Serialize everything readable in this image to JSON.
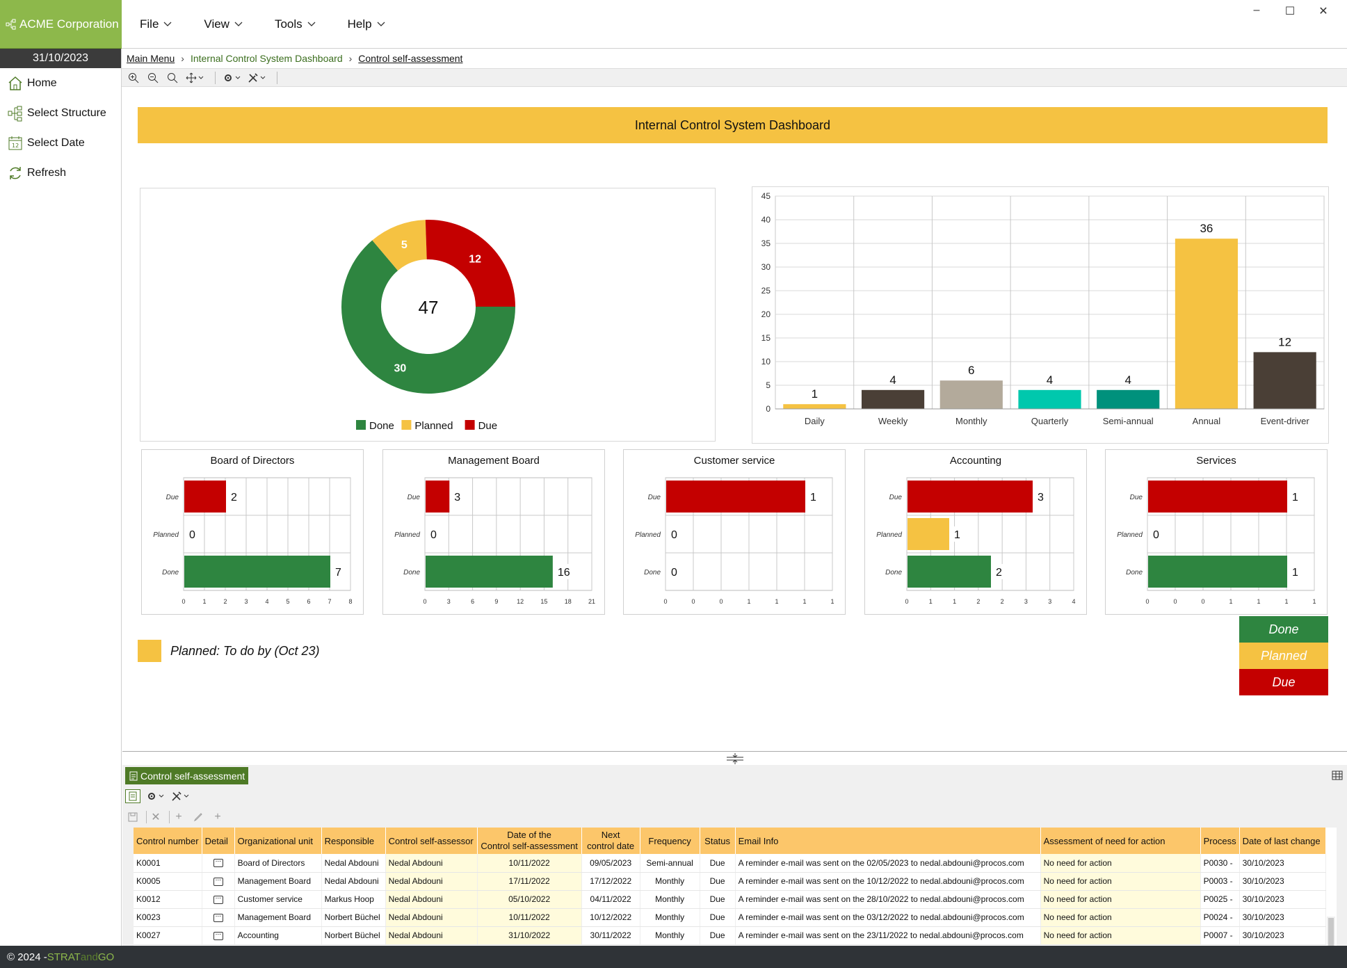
{
  "app": {
    "brand": "ACME Corporation",
    "date": "31/10/2023",
    "menu": [
      {
        "label": "File"
      },
      {
        "label": "View"
      },
      {
        "label": "Tools"
      },
      {
        "label": "Help"
      }
    ],
    "window_controls": [
      "–",
      "☐",
      "✕"
    ]
  },
  "sidebar": {
    "items": [
      {
        "label": "Home",
        "icon": "home-icon"
      },
      {
        "label": "Select Structure",
        "icon": "structure-icon"
      },
      {
        "label": "Select Date",
        "icon": "calendar-icon"
      },
      {
        "label": "Refresh",
        "icon": "refresh-icon"
      }
    ]
  },
  "breadcrumb": {
    "items": [
      "Main Menu",
      "Internal Control System Dashboard",
      "Control self-assessment"
    ]
  },
  "dashboard": {
    "title": "Internal Control System Dashboard",
    "planned_note": "Planned: To do by (Oct 23)",
    "legend_box": [
      "Done",
      "Planned",
      "Due"
    ]
  },
  "colors": {
    "done": "#2e8540",
    "planned": "#f5c242",
    "due": "#c40000",
    "brand_green": "#8db84b",
    "header_yellow": "#f5c242"
  },
  "chart_data": [
    {
      "type": "pie",
      "center_label": "47",
      "slices": [
        {
          "label": "Done",
          "value": 30,
          "color": "#2e8540"
        },
        {
          "label": "Planned",
          "value": 5,
          "color": "#f5c242"
        },
        {
          "label": "Due",
          "value": 12,
          "color": "#c40000"
        }
      ],
      "legend": [
        "Done",
        "Planned",
        "Due"
      ],
      "legend_placement": "bottom"
    },
    {
      "type": "bar",
      "categories": [
        "Daily",
        "Weekly",
        "Monthly",
        "Quarterly",
        "Semi-annual",
        "Annual",
        "Event-driver"
      ],
      "values": [
        1,
        4,
        6,
        4,
        4,
        36,
        12
      ],
      "colors": [
        "#f5c242",
        "#4a3f36",
        "#b3aa9b",
        "#00c8ad",
        "#00917c",
        "#f5c242",
        "#4a3f36"
      ],
      "ylim": [
        0,
        45
      ],
      "yticks": [
        "0",
        "5",
        "10",
        "15",
        "20",
        "25",
        "30",
        "35",
        "40",
        "45"
      ],
      "grid": true
    },
    {
      "type": "bar",
      "orientation": "horizontal",
      "title": "Board of Directors",
      "categories": [
        "Due",
        "Planned",
        "Done"
      ],
      "values": [
        2,
        0,
        7
      ],
      "xlim": [
        0,
        8
      ],
      "xticks": [
        "0",
        "1",
        "2",
        "3",
        "4",
        "5",
        "6",
        "7",
        "8"
      ]
    },
    {
      "type": "bar",
      "orientation": "horizontal",
      "title": "Management Board",
      "categories": [
        "Due",
        "Planned",
        "Done"
      ],
      "values": [
        3,
        0,
        16
      ],
      "xlim": [
        0,
        21
      ],
      "xticks": [
        "0",
        "3",
        "6",
        "9",
        "12",
        "15",
        "18",
        "21"
      ]
    },
    {
      "type": "bar",
      "orientation": "horizontal",
      "title": "Customer service",
      "categories": [
        "Due",
        "Planned",
        "Done"
      ],
      "values": [
        1,
        0,
        0
      ],
      "xlim": [
        0,
        1.2
      ],
      "xticks": [
        "0",
        "0",
        "0",
        "1",
        "1",
        "1",
        "1"
      ]
    },
    {
      "type": "bar",
      "orientation": "horizontal",
      "title": "Accounting",
      "categories": [
        "Due",
        "Planned",
        "Done"
      ],
      "values": [
        3,
        1,
        2
      ],
      "xlim": [
        0,
        4
      ],
      "xticks": [
        "0",
        "1",
        "1",
        "2",
        "2",
        "3",
        "3",
        "4"
      ]
    },
    {
      "type": "bar",
      "orientation": "horizontal",
      "title": "Services",
      "categories": [
        "Due",
        "Planned",
        "Done"
      ],
      "values": [
        1,
        0,
        1
      ],
      "xlim": [
        0,
        1.2
      ],
      "xticks": [
        "0",
        "0",
        "0",
        "1",
        "1",
        "1",
        "1"
      ]
    }
  ],
  "bottom": {
    "tab_label": "Control self-assessment",
    "table": {
      "headers": [
        "Control number",
        "Detail",
        "Organizational unit",
        "Responsible",
        "Control self-assessor",
        "Date of the\nControl self-assessment",
        "Next\ncontrol date",
        "Frequency",
        "Status",
        "Email Info",
        "Assessment of need for action",
        "Process",
        "Date of last change"
      ],
      "rows": [
        [
          "K0001",
          "",
          "Board of Directors",
          "Nedal Abdouni",
          "Nedal Abdouni",
          "10/11/2022",
          "09/05/2023",
          "Semi-annual",
          "Due",
          "A reminder e-mail was sent on the 02/05/2023 to nedal.abdouni@procos.com",
          "No need for action",
          "P0030 -",
          "30/10/2023"
        ],
        [
          "K0005",
          "",
          "Management Board",
          "Nedal Abdouni",
          "Nedal Abdouni",
          "17/11/2022",
          "17/12/2022",
          "Monthly",
          "Due",
          "A reminder e-mail was sent on the 10/12/2022 to nedal.abdouni@procos.com",
          "No need for action",
          "P0003 -",
          "30/10/2023"
        ],
        [
          "K0012",
          "",
          "Customer service",
          "Markus Hoop",
          "Nedal Abdouni",
          "05/10/2022",
          "04/11/2022",
          "Monthly",
          "Due",
          "A reminder e-mail was sent on the 28/10/2022 to nedal.abdouni@procos.com",
          "No need for action",
          "P0025 -",
          "30/10/2023"
        ],
        [
          "K0023",
          "",
          "Management Board",
          "Norbert Büchel",
          "Nedal Abdouni",
          "10/11/2022",
          "10/12/2022",
          "Monthly",
          "Due",
          "A reminder e-mail was sent on the 03/12/2022 to nedal.abdouni@procos.com",
          "No need for action",
          "P0024 -",
          "30/10/2023"
        ],
        [
          "K0027",
          "",
          "Accounting",
          "Norbert Büchel",
          "Nedal Abdouni",
          "31/10/2022",
          "30/11/2022",
          "Monthly",
          "Due",
          "A reminder e-mail was sent on the 23/11/2022 to nedal.abdouni@procos.com",
          "No need for action",
          "P0007 -",
          "30/10/2023"
        ]
      ]
    }
  },
  "footer": {
    "copyright": "© 2024 - ",
    "brand_a": "STRAT",
    "brand_b": "and",
    "brand_c": "GO"
  }
}
